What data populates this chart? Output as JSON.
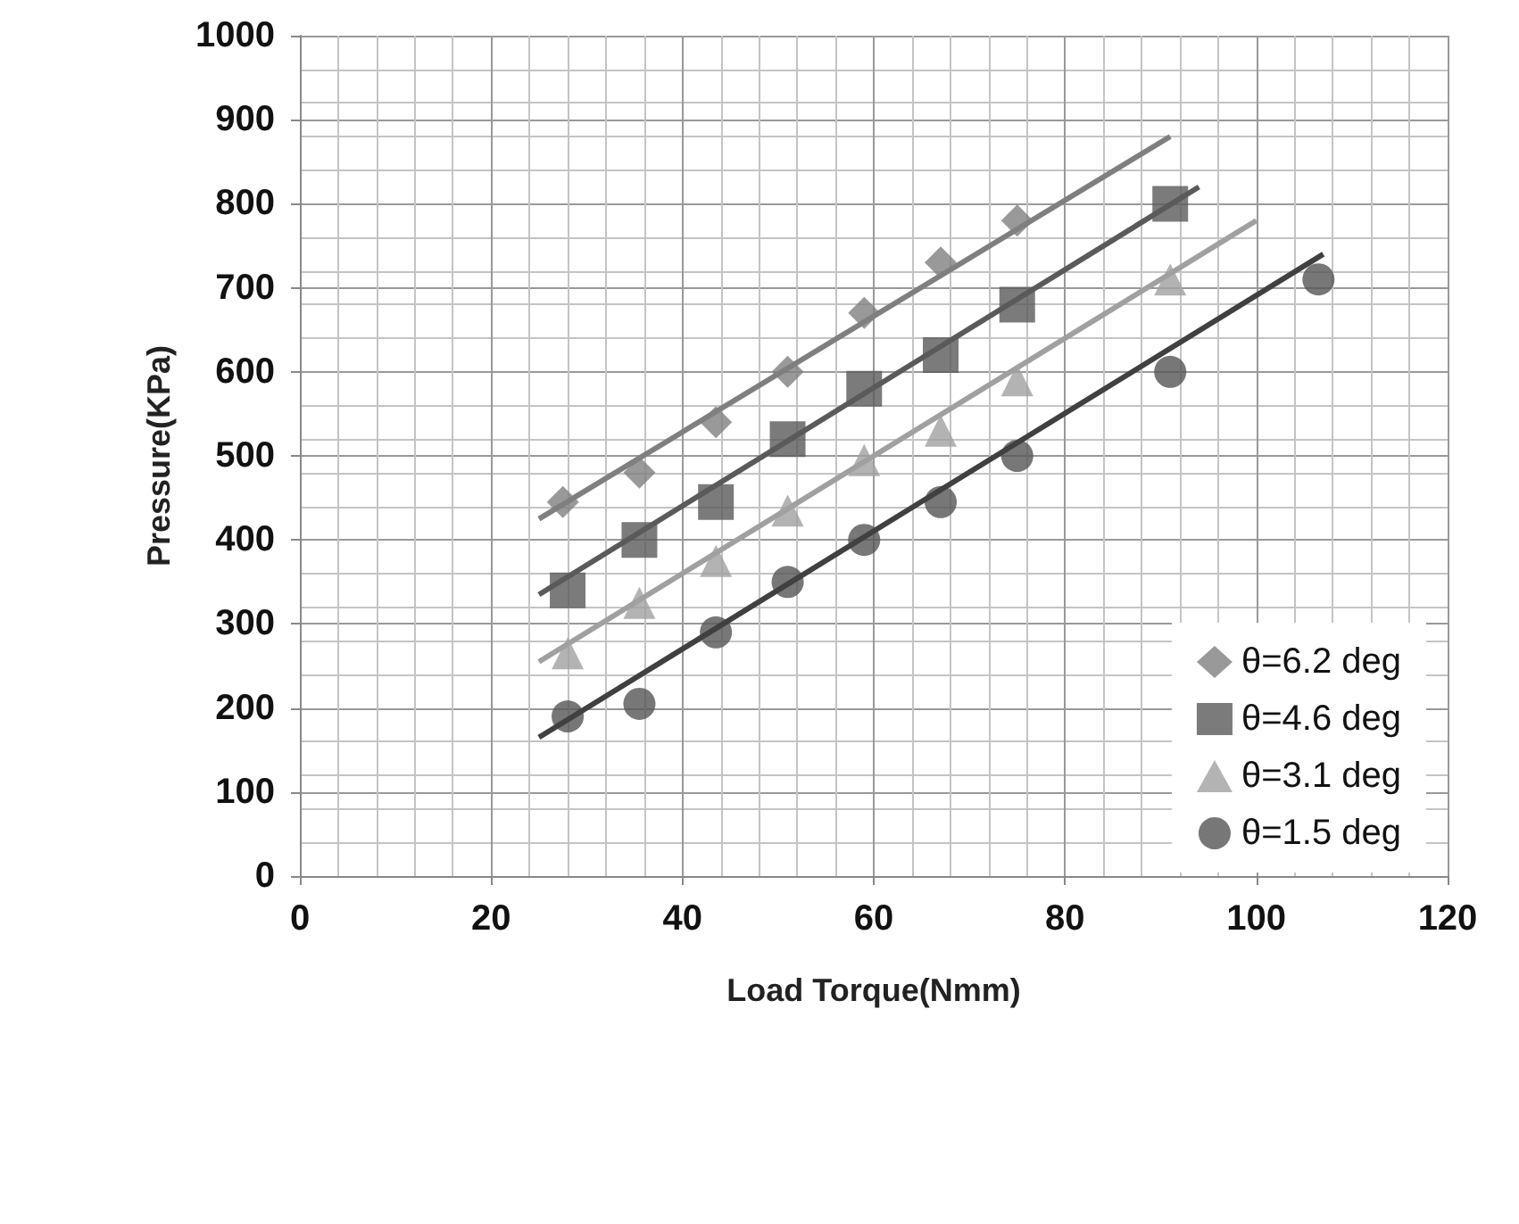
{
  "chart_data": {
    "type": "scatter",
    "xlabel": "Load Torque(Nmm)",
    "ylabel": "Pressure(KPa)",
    "xlim": [
      0,
      120
    ],
    "xticks": [
      0,
      20,
      40,
      60,
      80,
      100,
      120
    ],
    "ylim": [
      0,
      1000
    ],
    "yticks": [
      0,
      100,
      200,
      300,
      400,
      500,
      600,
      700,
      800,
      900,
      1000
    ],
    "grid": true,
    "legend": "bottom right",
    "series": [
      {
        "name": "θ=6.2 deg",
        "color": "#7f7f7f",
        "marker": "diamond",
        "x": [
          27.5,
          35.5,
          43.5,
          51,
          59,
          67,
          75
        ],
        "values": [
          445,
          480,
          540,
          600,
          670,
          730,
          780
        ]
      },
      {
        "name": "θ=4.6 deg",
        "color": "#5a5a5a",
        "marker": "square",
        "x": [
          28,
          35.5,
          43.5,
          51,
          59,
          67,
          75,
          91
        ],
        "values": [
          340,
          400,
          445,
          520,
          580,
          620,
          680,
          800
        ]
      },
      {
        "name": "θ=3.1 deg",
        "color": "#a0a0a0",
        "marker": "triangle",
        "x": [
          28,
          35.5,
          43.5,
          51,
          59,
          67,
          75,
          91
        ],
        "values": [
          265,
          325,
          375,
          435,
          495,
          530,
          590,
          710
        ]
      },
      {
        "name": "θ=1.5 deg",
        "color": "#555555",
        "marker": "circle",
        "x": [
          28,
          35.5,
          43.5,
          51,
          59,
          67,
          75,
          91,
          106.5
        ],
        "values": [
          190,
          205,
          290,
          350,
          400,
          445,
          500,
          600,
          710
        ]
      },
      {
        "type": "line",
        "color": "#7f7f7f",
        "marker": "none",
        "x": [
          25,
          91
        ],
        "values": [
          425,
          880
        ]
      },
      {
        "type": "line",
        "color": "#5a5a5a",
        "marker": "none",
        "x": [
          25,
          94
        ],
        "values": [
          335,
          820
        ]
      },
      {
        "type": "line",
        "color": "#a0a0a0",
        "marker": "none",
        "x": [
          25,
          100
        ],
        "values": [
          255,
          780
        ]
      },
      {
        "type": "line",
        "color": "#404040",
        "marker": "none",
        "x": [
          25,
          107
        ],
        "values": [
          165,
          740
        ]
      }
    ]
  }
}
